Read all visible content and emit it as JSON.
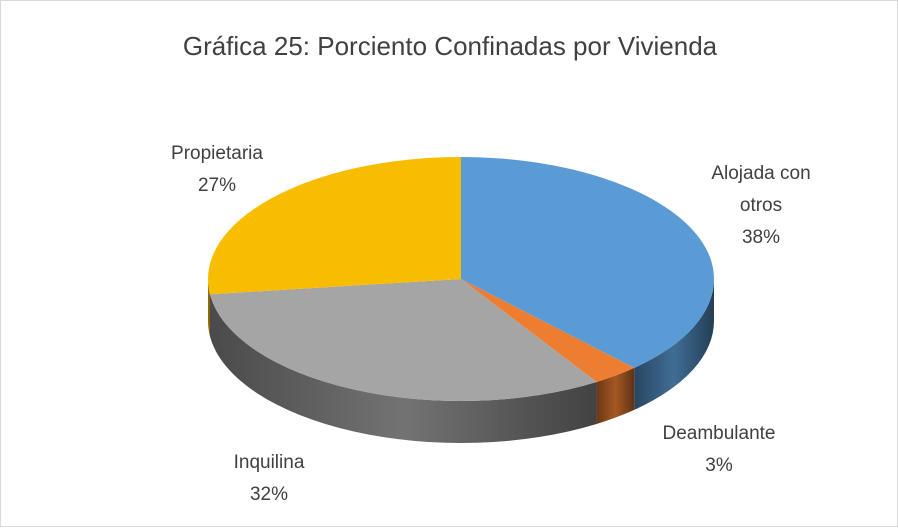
{
  "chart_data": {
    "type": "pie",
    "title": "Gráfica 25: Porciento Confinadas por Vivienda",
    "categories": [
      "Alojada con otros",
      "Deambulante",
      "Inquilina",
      "Propietaria"
    ],
    "values": [
      38,
      3,
      32,
      27
    ],
    "value_labels": [
      "38%",
      "3%",
      "32%",
      "27%"
    ],
    "colors": [
      "#5b9bd5",
      "#ed7d31",
      "#a5a5a5",
      "#f9bd00"
    ]
  }
}
